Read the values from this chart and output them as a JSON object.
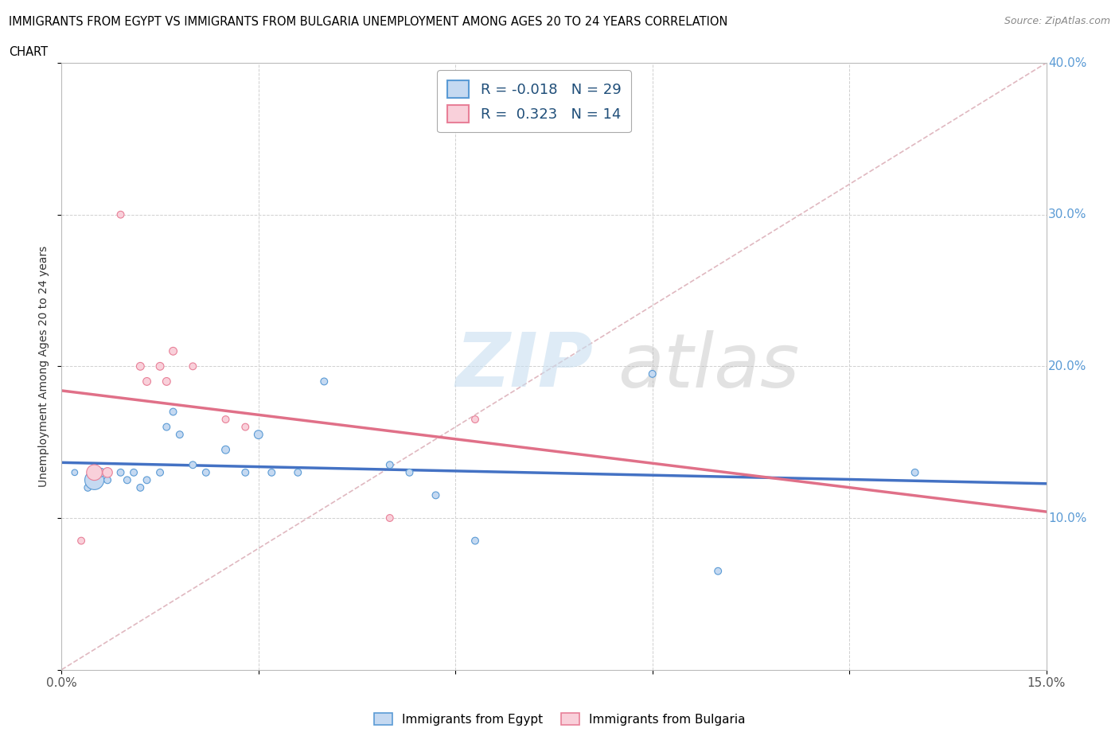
{
  "title_line1": "IMMIGRANTS FROM EGYPT VS IMMIGRANTS FROM BULGARIA UNEMPLOYMENT AMONG AGES 20 TO 24 YEARS CORRELATION",
  "title_line2": "CHART",
  "source": "Source: ZipAtlas.com",
  "ylabel": "Unemployment Among Ages 20 to 24 years",
  "xlim": [
    0.0,
    0.15
  ],
  "ylim": [
    0.0,
    0.4
  ],
  "egypt_color": "#c5d9f1",
  "egypt_edge_color": "#5b9bd5",
  "bulgaria_color": "#f9d0da",
  "bulgaria_edge_color": "#e88098",
  "egypt_R": -0.018,
  "egypt_N": 29,
  "bulgaria_R": 0.323,
  "bulgaria_N": 14,
  "egypt_line_color": "#4472c4",
  "bulgaria_line_color": "#e07088",
  "diagonal_color": "#e0b8c0",
  "legend_text_color": "#1f4e79",
  "egypt_scatter_x": [
    0.002,
    0.004,
    0.005,
    0.006,
    0.007,
    0.009,
    0.01,
    0.011,
    0.012,
    0.013,
    0.015,
    0.016,
    0.017,
    0.018,
    0.02,
    0.022,
    0.025,
    0.028,
    0.03,
    0.032,
    0.036,
    0.04,
    0.05,
    0.053,
    0.057,
    0.063,
    0.09,
    0.1,
    0.13
  ],
  "egypt_scatter_y": [
    0.13,
    0.12,
    0.125,
    0.13,
    0.125,
    0.13,
    0.125,
    0.13,
    0.12,
    0.125,
    0.13,
    0.16,
    0.17,
    0.155,
    0.135,
    0.13,
    0.145,
    0.13,
    0.155,
    0.13,
    0.13,
    0.19,
    0.135,
    0.13,
    0.115,
    0.085,
    0.195,
    0.065,
    0.13
  ],
  "egypt_scatter_sizes": [
    30,
    40,
    300,
    60,
    40,
    40,
    40,
    40,
    40,
    40,
    40,
    40,
    40,
    40,
    40,
    40,
    50,
    40,
    60,
    40,
    40,
    40,
    40,
    40,
    40,
    40,
    40,
    40,
    40
  ],
  "bulgaria_scatter_x": [
    0.003,
    0.005,
    0.007,
    0.009,
    0.012,
    0.013,
    0.015,
    0.016,
    0.017,
    0.02,
    0.025,
    0.028,
    0.05,
    0.063
  ],
  "bulgaria_scatter_y": [
    0.085,
    0.13,
    0.13,
    0.3,
    0.2,
    0.19,
    0.2,
    0.19,
    0.21,
    0.2,
    0.165,
    0.16,
    0.1,
    0.165
  ],
  "bulgaria_scatter_sizes": [
    40,
    200,
    80,
    40,
    50,
    50,
    50,
    50,
    50,
    40,
    40,
    40,
    40,
    40
  ]
}
